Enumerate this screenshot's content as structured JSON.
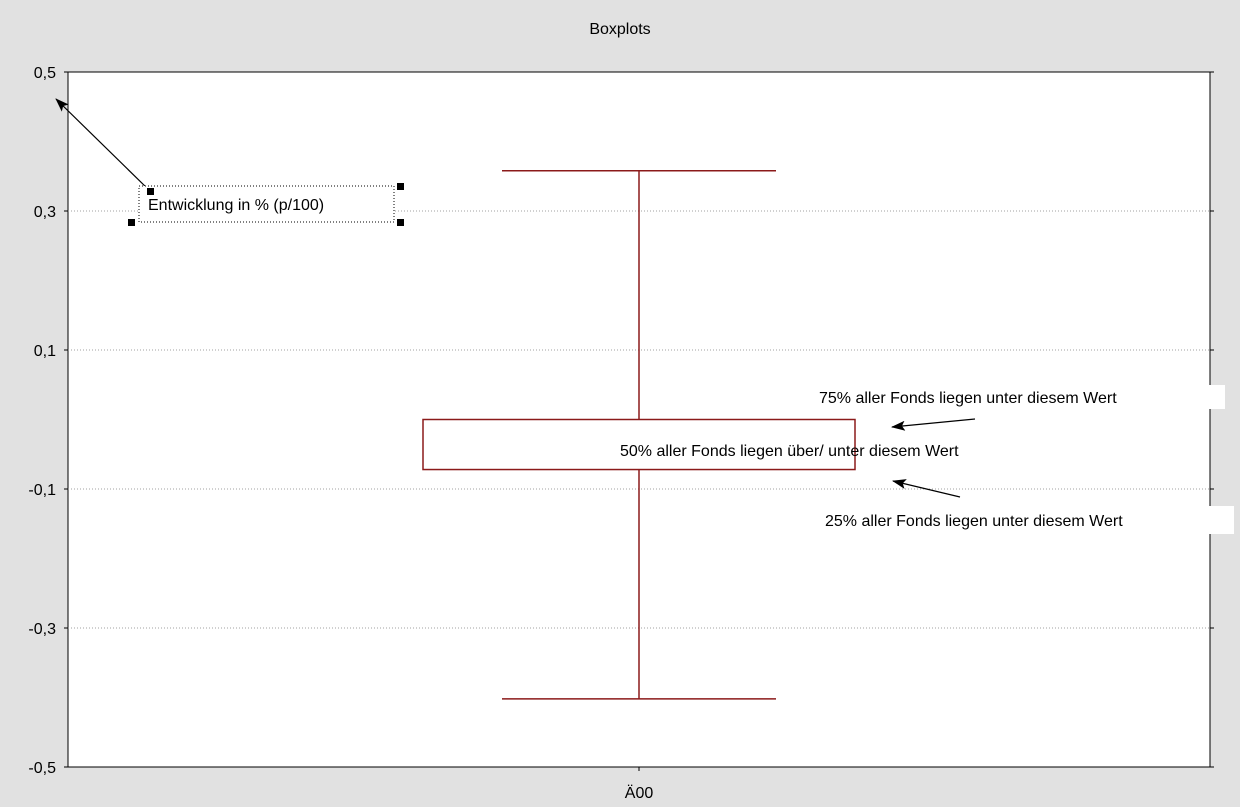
{
  "chart_data": {
    "type": "box",
    "title": "Boxplots",
    "categories": [
      "Ä00"
    ],
    "boxes": [
      {
        "category": "Ä00",
        "whisker_high": 0.358,
        "q3": 0.0,
        "q1": -0.072,
        "whisker_low": -0.402
      }
    ],
    "ylim": [
      -0.5,
      0.5
    ],
    "yticks": [
      0.5,
      0.3,
      0.1,
      -0.1,
      -0.3,
      -0.5
    ],
    "ytick_labels": [
      "0,5",
      "0,3",
      "0,1",
      "-0,1",
      "-0,3",
      "-0,5"
    ],
    "grid": true,
    "box_color": "#8b1a1a",
    "grid_color": "#a0a0a0",
    "plot_background": "#ffffff",
    "frame_background": "#e1e1e1",
    "annotations": {
      "y_axis_note": "Entwicklung in % (p/100)",
      "q3_note": "75% aller Fonds liegen unter diesem Wert",
      "median_note": "50% aller Fonds liegen über/ unter diesem Wert",
      "q1_note": "25% aller Fonds liegen unter diesem Wert"
    }
  }
}
